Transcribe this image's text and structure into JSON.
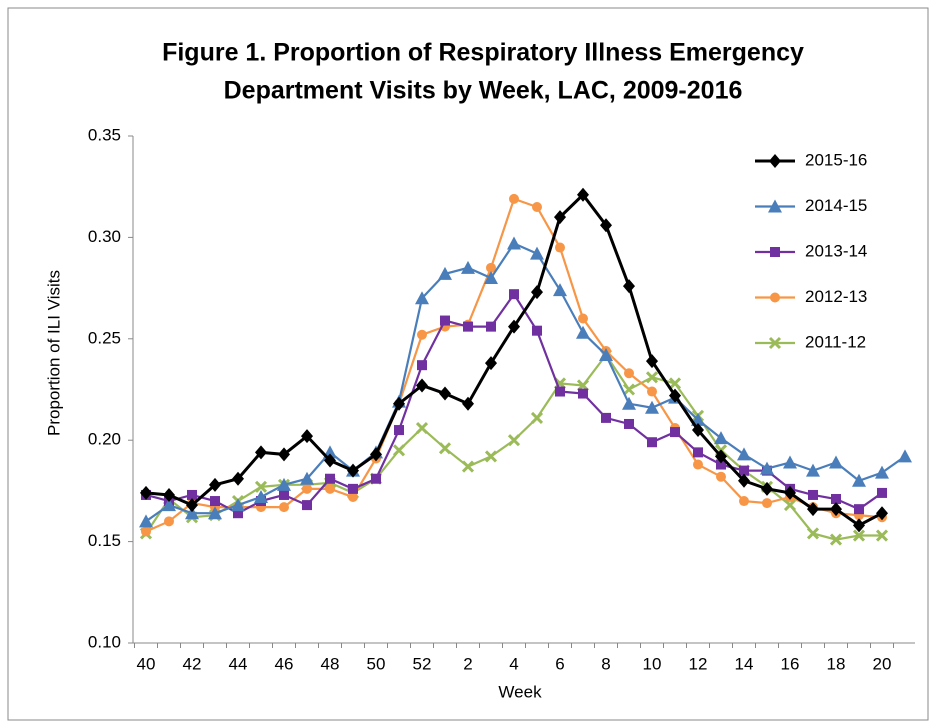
{
  "chart_data": {
    "type": "line",
    "title": [
      "Figure 1. Proportion of Respiratory Illness Emergency",
      "Department Visits by Week, LAC, 2009-2016"
    ],
    "x_label": "Week",
    "y_label": "Proportion of ILI Visits",
    "categories": [
      "40",
      null,
      "42",
      null,
      "44",
      null,
      "46",
      null,
      "48",
      null,
      "50",
      null,
      "52",
      null,
      "2",
      null,
      "4",
      null,
      "6",
      null,
      "8",
      null,
      "10",
      null,
      "12",
      null,
      "14",
      null,
      "16",
      null,
      "18",
      null,
      "20",
      null
    ],
    "ylim": [
      0.1,
      0.35
    ],
    "yticks": [
      {
        "value": 0.1,
        "label": "0.10"
      },
      0.15,
      {
        "value": 0.2,
        "label": "0.20"
      },
      0.25,
      {
        "value": 0.3,
        "label": "0.30"
      },
      0.35
    ],
    "legend": "upper right",
    "series": [
      {
        "name": "2015-16",
        "color": "#000000",
        "marker": "diamond",
        "values": [
          0.174,
          0.173,
          0.168,
          0.178,
          0.181,
          0.194,
          0.193,
          0.202,
          0.19,
          0.185,
          0.193,
          0.218,
          0.227,
          0.223,
          0.218,
          0.238,
          0.256,
          0.273,
          0.31,
          0.321,
          0.306,
          0.276,
          0.239,
          0.222,
          0.205,
          0.192,
          0.18,
          0.176,
          0.174,
          0.166,
          0.166,
          0.158,
          0.164,
          null
        ]
      },
      {
        "name": "2014-15",
        "color": "#4a7ebb",
        "marker": "triangle",
        "values": [
          0.16,
          0.168,
          0.164,
          0.164,
          0.168,
          0.172,
          0.178,
          0.181,
          0.194,
          0.185,
          0.194,
          0.219,
          0.27,
          0.282,
          0.285,
          0.28,
          0.297,
          0.292,
          0.274,
          0.253,
          0.242,
          0.218,
          0.216,
          0.221,
          0.21,
          0.201,
          0.193,
          0.186,
          0.189,
          0.185,
          0.189,
          0.18,
          0.184,
          0.192
        ]
      },
      {
        "name": "2013-14",
        "color": "#7030a0",
        "marker": "square",
        "values": [
          0.173,
          0.17,
          0.173,
          0.17,
          0.164,
          0.17,
          0.173,
          0.168,
          0.181,
          0.176,
          0.181,
          0.205,
          0.237,
          0.259,
          0.256,
          0.256,
          0.272,
          0.254,
          0.224,
          0.223,
          0.211,
          0.208,
          0.199,
          0.204,
          0.194,
          0.188,
          0.185,
          0.185,
          0.176,
          0.173,
          0.171,
          0.166,
          0.174,
          null
        ]
      },
      {
        "name": "2012-13",
        "color": "#f79646",
        "marker": "circle",
        "values": [
          0.155,
          0.16,
          0.169,
          0.167,
          0.167,
          0.167,
          0.167,
          0.176,
          0.176,
          0.172,
          0.191,
          0.218,
          0.252,
          0.256,
          0.257,
          0.285,
          0.319,
          0.315,
          0.295,
          0.26,
          0.244,
          0.233,
          0.224,
          0.206,
          0.188,
          0.182,
          0.17,
          0.169,
          0.172,
          0.167,
          0.164,
          0.163,
          0.162,
          null
        ]
      },
      {
        "name": "2011-12",
        "color": "#9bbb59",
        "marker": "x",
        "values": [
          0.154,
          0.171,
          0.162,
          0.163,
          0.17,
          0.177,
          0.178,
          0.178,
          0.179,
          0.174,
          0.181,
          0.195,
          0.206,
          0.196,
          0.187,
          0.192,
          0.2,
          0.211,
          0.228,
          0.227,
          0.242,
          0.225,
          0.231,
          0.228,
          0.212,
          0.195,
          0.185,
          0.177,
          0.168,
          0.154,
          0.151,
          0.153,
          0.153,
          null
        ]
      }
    ]
  }
}
